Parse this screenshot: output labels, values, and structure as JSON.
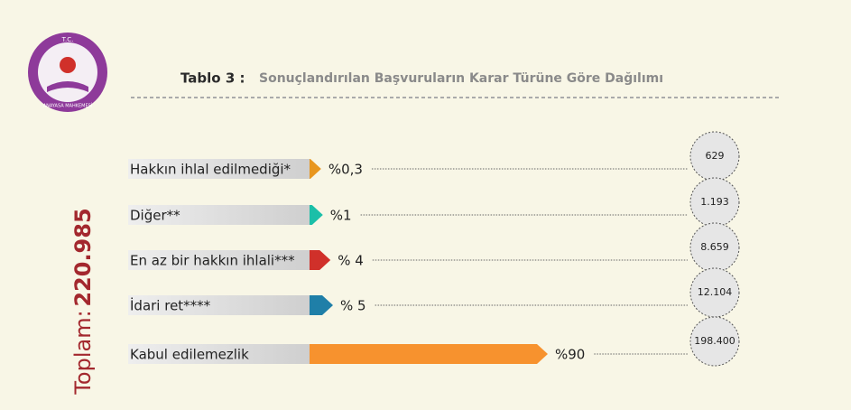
{
  "chart_data": {
    "type": "bar",
    "logo_top": "T.C.",
    "logo_bottom": "ANAYASA MAHKEMESİ",
    "title_prefix": "Tablo 3 :",
    "title": "Sonuçlandırılan Başvuruların Karar Türüne Göre Dağılımı",
    "categories": [
      "Hakkın ihlal edilmediği*",
      "Diğer**",
      "En az bir hakkın ihlali***",
      "İdari ret****",
      "Kabul edilemezlik"
    ],
    "values": [
      0.3,
      1,
      4,
      5,
      90
    ],
    "value_labels": [
      "%0,3",
      "%1",
      "% 4",
      "% 5",
      "%90"
    ],
    "colors": [
      "#e8961e",
      "#1bbfa8",
      "#d0302a",
      "#1f7fa8",
      "#f7922e"
    ],
    "counts": [
      629,
      1193,
      8659,
      12104,
      198400
    ],
    "count_labels": [
      "629",
      "1.193",
      "8.659",
      "12.104",
      "198.400"
    ],
    "total_prefix": "Toplam:",
    "total": {
      "value": 220985,
      "label": "220.985"
    }
  }
}
